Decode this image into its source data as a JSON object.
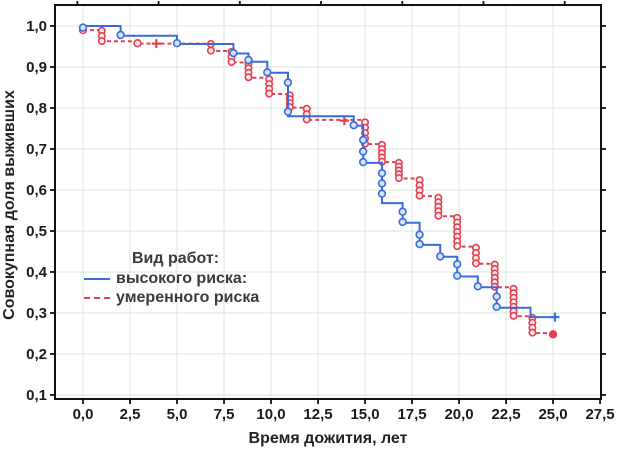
{
  "figure": {
    "xlabel": "Время дожития, лет",
    "ylabel": "Совокупная доля выживших",
    "legend": {
      "title": "Вид работ:",
      "items": [
        {
          "label": "высокого риска:",
          "color": "#3a6bd8",
          "style": "solid"
        },
        {
          "label": "умеренного риска",
          "color": "#e2414f",
          "style": "dashed"
        }
      ]
    }
  },
  "chart_data": {
    "type": "line",
    "subtype": "kaplan-meier-step",
    "title": "",
    "xlabel": "Время дожития, лет",
    "ylabel": "Совокупная доля выживших",
    "xlim": [
      -1.49,
      27.55
    ],
    "ylim": [
      0.0902,
      1.0512
    ],
    "grid": true,
    "legend_position": "inside-left-lower",
    "colors": {
      "grid": "#d7e7e1",
      "axis": "#111111",
      "tick_text": "#1b1b1b",
      "high_risk": "#3a6bd8",
      "high_risk_fill": "#d6e4fa",
      "moderate_risk": "#e2414f",
      "moderate_risk_fill": "#fbe9ec"
    },
    "xticks": {
      "values": [
        0,
        2.5,
        5,
        7.5,
        10,
        12.5,
        15,
        17.5,
        20,
        22.5,
        25,
        27.5
      ],
      "labels": [
        "0,0",
        "2,5",
        "5,0",
        "7,5",
        "10,0",
        "12,5",
        "15,0",
        "17,5",
        "20,0",
        "22,5",
        "25,0",
        "27,5"
      ]
    },
    "xticks_top": [
      -0.3,
      4.02,
      8.34,
      12.66,
      16.98,
      21.3,
      25.62
    ],
    "yticks": {
      "values": [
        1.0,
        0.9,
        0.8,
        0.7,
        0.6,
        0.5,
        0.4,
        0.3,
        0.2,
        0.1
      ],
      "labels": [
        "1,0",
        "0,9",
        "0,8",
        "0,7",
        "0,6",
        "0,5",
        "0,4",
        "0,3",
        "0,2",
        "0,1"
      ]
    },
    "series": [
      {
        "name": "высокого риска",
        "line": "solid",
        "steps": [
          [
            0,
            1.0
          ],
          [
            2.0,
            0.976
          ],
          [
            5.0,
            0.956
          ],
          [
            8.0,
            0.933
          ],
          [
            8.8,
            0.913
          ],
          [
            9.8,
            0.886
          ],
          [
            10.9,
            0.78
          ],
          [
            14.4,
            0.757
          ],
          [
            14.9,
            0.666
          ],
          [
            15.9,
            0.568
          ],
          [
            17.0,
            0.52
          ],
          [
            17.9,
            0.466
          ],
          [
            19.0,
            0.437
          ],
          [
            19.9,
            0.389
          ],
          [
            21.0,
            0.363
          ],
          [
            22.0,
            0.313
          ],
          [
            23.8,
            0.29
          ]
        ],
        "end_x": 25.1,
        "markers_circle": [
          [
            0.0,
            0.996
          ],
          [
            2.0,
            0.978
          ],
          [
            5.0,
            0.958
          ],
          [
            8.0,
            0.934
          ],
          [
            8.8,
            0.917
          ],
          [
            9.8,
            0.887
          ],
          [
            10.9,
            0.862
          ],
          [
            10.9,
            0.791
          ],
          [
            14.4,
            0.758
          ],
          [
            14.9,
            0.722
          ],
          [
            14.9,
            0.694
          ],
          [
            14.9,
            0.668
          ],
          [
            15.9,
            0.641
          ],
          [
            15.9,
            0.616
          ],
          [
            15.9,
            0.591
          ],
          [
            17.0,
            0.547
          ],
          [
            17.0,
            0.522
          ],
          [
            17.9,
            0.491
          ],
          [
            17.9,
            0.468
          ],
          [
            19.0,
            0.438
          ],
          [
            19.9,
            0.419
          ],
          [
            19.9,
            0.391
          ],
          [
            21.0,
            0.365
          ],
          [
            22.0,
            0.34
          ],
          [
            22.0,
            0.315
          ]
        ],
        "markers_plus": [
          [
            25.1,
            0.29
          ]
        ]
      },
      {
        "name": "умеренного риска",
        "line": "dashed",
        "steps": [
          [
            0,
            0.99
          ],
          [
            1.0,
            0.963
          ],
          [
            2.9,
            0.957
          ],
          [
            6.8,
            0.939
          ],
          [
            7.9,
            0.911
          ],
          [
            8.8,
            0.874
          ],
          [
            9.9,
            0.834
          ],
          [
            11.0,
            0.801
          ],
          [
            11.9,
            0.771
          ],
          [
            15.0,
            0.712
          ],
          [
            15.9,
            0.668
          ],
          [
            16.8,
            0.628
          ],
          [
            17.9,
            0.585
          ],
          [
            18.9,
            0.536
          ],
          [
            19.9,
            0.462
          ],
          [
            20.9,
            0.42
          ],
          [
            21.9,
            0.363
          ],
          [
            22.9,
            0.292
          ],
          [
            23.9,
            0.251
          ]
        ],
        "end_x": 25.0,
        "markers_circle": [
          [
            0.0,
            0.99
          ],
          [
            2.9,
            0.958
          ]
        ],
        "censor_clusters": [
          [
            1.0,
            0.988,
            0.963,
            3
          ],
          [
            6.8,
            0.956,
            0.94,
            2
          ],
          [
            7.9,
            0.937,
            0.912,
            3
          ],
          [
            8.8,
            0.908,
            0.875,
            4
          ],
          [
            9.9,
            0.87,
            0.835,
            4
          ],
          [
            11.0,
            0.831,
            0.802,
            4
          ],
          [
            11.9,
            0.798,
            0.772,
            3
          ],
          [
            15.0,
            0.765,
            0.713,
            5
          ],
          [
            15.9,
            0.71,
            0.669,
            5
          ],
          [
            16.8,
            0.666,
            0.629,
            5
          ],
          [
            17.9,
            0.624,
            0.586,
            4
          ],
          [
            18.9,
            0.581,
            0.537,
            5
          ],
          [
            19.9,
            0.532,
            0.463,
            7
          ],
          [
            20.9,
            0.459,
            0.421,
            4
          ],
          [
            21.9,
            0.418,
            0.364,
            6
          ],
          [
            22.9,
            0.359,
            0.293,
            7
          ],
          [
            23.9,
            0.288,
            0.252,
            4
          ]
        ],
        "markers_plus": [
          [
            3.9,
            0.957
          ],
          [
            13.9,
            0.769
          ]
        ],
        "end_dot": [
          25.0,
          0.248
        ]
      }
    ]
  }
}
